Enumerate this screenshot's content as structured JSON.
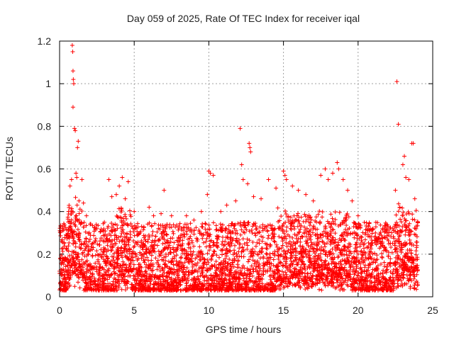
{
  "chart_data": {
    "type": "scatter",
    "title": "Day 059 of 2025, Rate Of TEC Index for receiver iqal",
    "xlabel": "GPS time / hours",
    "ylabel": "ROTI / TECUs",
    "xlim": [
      0,
      25
    ],
    "ylim": [
      0,
      1.2
    ],
    "xticks": [
      "0",
      "5",
      "10",
      "15",
      "20",
      "25"
    ],
    "yticks": [
      "0",
      "0.2",
      "0.4",
      "0.6",
      "0.8",
      "1",
      "1.2"
    ],
    "grid": true,
    "marker": "+",
    "color": "#ff0000",
    "series": [
      {
        "points": [
          [
            0.0,
            0.12
          ],
          [
            0.2,
            0.33
          ],
          [
            0.3,
            0.25
          ],
          [
            0.4,
            0.18
          ],
          [
            0.5,
            0.22
          ],
          [
            0.6,
            0.4
          ],
          [
            0.7,
            0.52
          ],
          [
            0.8,
            0.55
          ],
          [
            0.85,
            1.18
          ],
          [
            0.88,
            1.15
          ],
          [
            0.9,
            1.06
          ],
          [
            0.92,
            1.02
          ],
          [
            0.95,
            1.0
          ],
          [
            0.9,
            0.89
          ],
          [
            1.0,
            0.79
          ],
          [
            1.05,
            0.78
          ],
          [
            1.1,
            0.58
          ],
          [
            1.15,
            0.56
          ],
          [
            1.2,
            0.7
          ],
          [
            1.25,
            0.73
          ],
          [
            1.3,
            0.45
          ],
          [
            1.5,
            0.55
          ],
          [
            1.6,
            0.44
          ],
          [
            1.8,
            0.38
          ],
          [
            2.0,
            0.3
          ],
          [
            2.2,
            0.25
          ],
          [
            2.5,
            0.32
          ],
          [
            3.0,
            0.35
          ],
          [
            3.3,
            0.55
          ],
          [
            3.5,
            0.47
          ],
          [
            3.8,
            0.48
          ],
          [
            4.0,
            0.52
          ],
          [
            4.2,
            0.56
          ],
          [
            4.4,
            0.46
          ],
          [
            4.6,
            0.54
          ],
          [
            5.0,
            0.4
          ],
          [
            5.5,
            0.33
          ],
          [
            6.0,
            0.42
          ],
          [
            6.3,
            0.38
          ],
          [
            6.8,
            0.39
          ],
          [
            7.0,
            0.5
          ],
          [
            7.5,
            0.38
          ],
          [
            8.0,
            0.33
          ],
          [
            8.5,
            0.38
          ],
          [
            9.0,
            0.36
          ],
          [
            9.5,
            0.4
          ],
          [
            9.9,
            0.48
          ],
          [
            10.0,
            0.59
          ],
          [
            10.1,
            0.58
          ],
          [
            10.3,
            0.57
          ],
          [
            10.8,
            0.4
          ],
          [
            11.2,
            0.43
          ],
          [
            11.8,
            0.45
          ],
          [
            12.1,
            0.79
          ],
          [
            12.2,
            0.62
          ],
          [
            12.3,
            0.55
          ],
          [
            12.6,
            0.53
          ],
          [
            12.7,
            0.72
          ],
          [
            12.75,
            0.7
          ],
          [
            12.8,
            0.68
          ],
          [
            13.0,
            0.47
          ],
          [
            13.5,
            0.46
          ],
          [
            14.0,
            0.55
          ],
          [
            14.5,
            0.51
          ],
          [
            15.0,
            0.59
          ],
          [
            15.1,
            0.57
          ],
          [
            15.2,
            0.55
          ],
          [
            15.6,
            0.52
          ],
          [
            16.0,
            0.5
          ],
          [
            16.5,
            0.48
          ],
          [
            17.0,
            0.45
          ],
          [
            17.5,
            0.57
          ],
          [
            17.8,
            0.6
          ],
          [
            18.0,
            0.55
          ],
          [
            18.3,
            0.58
          ],
          [
            18.6,
            0.63
          ],
          [
            18.7,
            0.6
          ],
          [
            19.0,
            0.55
          ],
          [
            19.3,
            0.5
          ],
          [
            19.6,
            0.45
          ],
          [
            20.0,
            0.38
          ],
          [
            20.5,
            0.3
          ],
          [
            21.0,
            0.32
          ],
          [
            21.5,
            0.25
          ],
          [
            22.0,
            0.33
          ],
          [
            22.5,
            0.5
          ],
          [
            22.6,
            1.01
          ],
          [
            22.7,
            0.81
          ],
          [
            22.8,
            0.42
          ],
          [
            23.0,
            0.62
          ],
          [
            23.1,
            0.66
          ],
          [
            23.2,
            0.56
          ],
          [
            23.4,
            0.55
          ],
          [
            23.6,
            0.72
          ],
          [
            23.7,
            0.72
          ],
          [
            23.8,
            0.46
          ],
          [
            24.0,
            0.35
          ]
        ]
      }
    ]
  }
}
